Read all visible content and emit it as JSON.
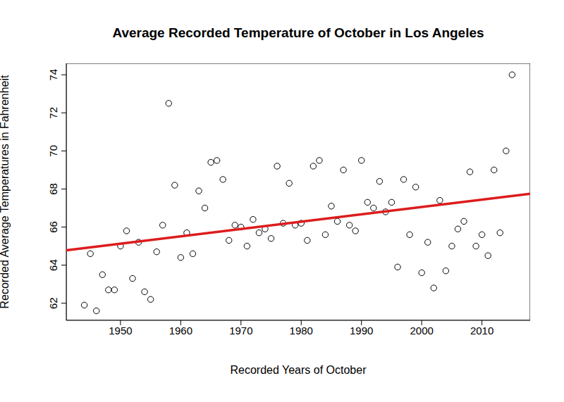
{
  "chart_data": {
    "type": "scatter",
    "title": "Average Recorded Temperature of October in Los Angeles",
    "x_label": "Recorded Years of October",
    "y_label": "Recorded Average Temperatures in Fahrenheit",
    "xlim": [
      1941,
      2018
    ],
    "xticks": [
      1950,
      1960,
      1970,
      1980,
      1990,
      2000,
      2010
    ],
    "ylim": [
      61.1,
      74.6
    ],
    "yticks": [
      62,
      64,
      66,
      68,
      70,
      72,
      74
    ],
    "grid": false,
    "series": [
      {
        "type": "scatter",
        "marker": "circle",
        "color": "#000000",
        "x": [
          1944,
          1945,
          1946,
          1947,
          1948,
          1949,
          1950,
          1951,
          1952,
          1953,
          1954,
          1955,
          1956,
          1957,
          1958,
          1959,
          1960,
          1961,
          1962,
          1963,
          1964,
          1965,
          1966,
          1967,
          1968,
          1969,
          1970,
          1971,
          1972,
          1973,
          1974,
          1975,
          1976,
          1977,
          1978,
          1979,
          1980,
          1981,
          1982,
          1983,
          1984,
          1985,
          1986,
          1987,
          1988,
          1989,
          1990,
          1991,
          1992,
          1993,
          1994,
          1995,
          1996,
          1997,
          1998,
          1999,
          2000,
          2001,
          2002,
          2003,
          2004,
          2005,
          2006,
          2007,
          2008,
          2009,
          2010,
          2011,
          2012,
          2013,
          2014,
          2015
        ],
        "values": [
          61.9,
          64.6,
          61.6,
          63.5,
          62.7,
          62.7,
          65.0,
          65.8,
          63.3,
          65.2,
          62.6,
          62.2,
          64.7,
          66.1,
          72.5,
          68.2,
          64.4,
          65.7,
          64.6,
          67.9,
          67.0,
          69.4,
          69.5,
          68.5,
          65.3,
          66.1,
          66.0,
          65.0,
          66.4,
          65.7,
          65.9,
          65.4,
          69.2,
          66.2,
          68.3,
          66.1,
          66.2,
          65.3,
          69.2,
          69.5,
          65.6,
          67.1,
          66.3,
          69.0,
          66.1,
          65.8,
          69.5,
          67.3,
          67.0,
          68.4,
          66.8,
          67.3,
          63.9,
          68.5,
          65.6,
          68.1,
          63.6,
          65.2,
          62.8,
          67.4,
          63.7,
          65.0,
          65.9,
          66.3,
          68.9,
          65.0,
          65.6,
          64.5,
          69.0,
          65.7,
          70.0,
          74.0
        ]
      },
      {
        "type": "line",
        "line_style": "solid",
        "color": "#dd1c1c",
        "x": [
          1941,
          2018
        ],
        "values": [
          64.78,
          67.75
        ]
      }
    ]
  }
}
